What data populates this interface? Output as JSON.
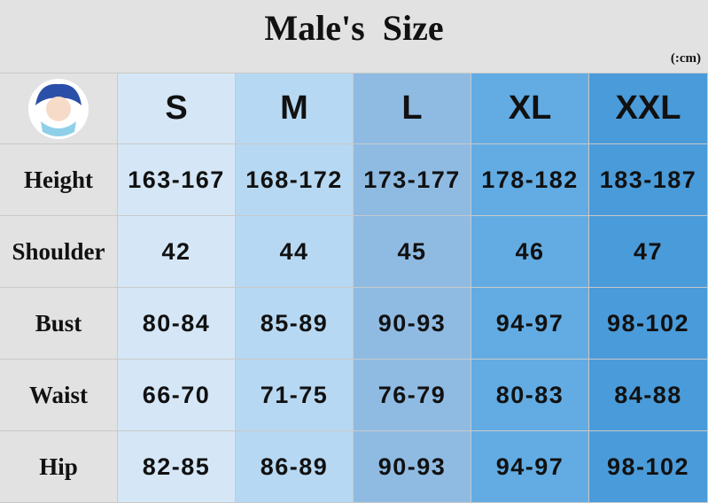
{
  "header": {
    "title": "Male's  Size",
    "unit": "(:cm)"
  },
  "table": {
    "columns": [
      "S",
      "M",
      "L",
      "XL",
      "XXL"
    ],
    "rows": [
      [
        "Height",
        "163-167",
        "168-172",
        "173-177",
        "178-182",
        "183-187"
      ],
      [
        "Shoulder",
        "42",
        "44",
        "45",
        "46",
        "47"
      ],
      [
        "Bust",
        "80-84",
        "85-89",
        "90-93",
        "94-97",
        "98-102"
      ],
      [
        "Waist",
        "66-70",
        "71-75",
        "76-79",
        "80-83",
        "84-88"
      ],
      [
        "Hip",
        "82-85",
        "86-89",
        "90-93",
        "94-97",
        "98-102"
      ]
    ]
  }
}
